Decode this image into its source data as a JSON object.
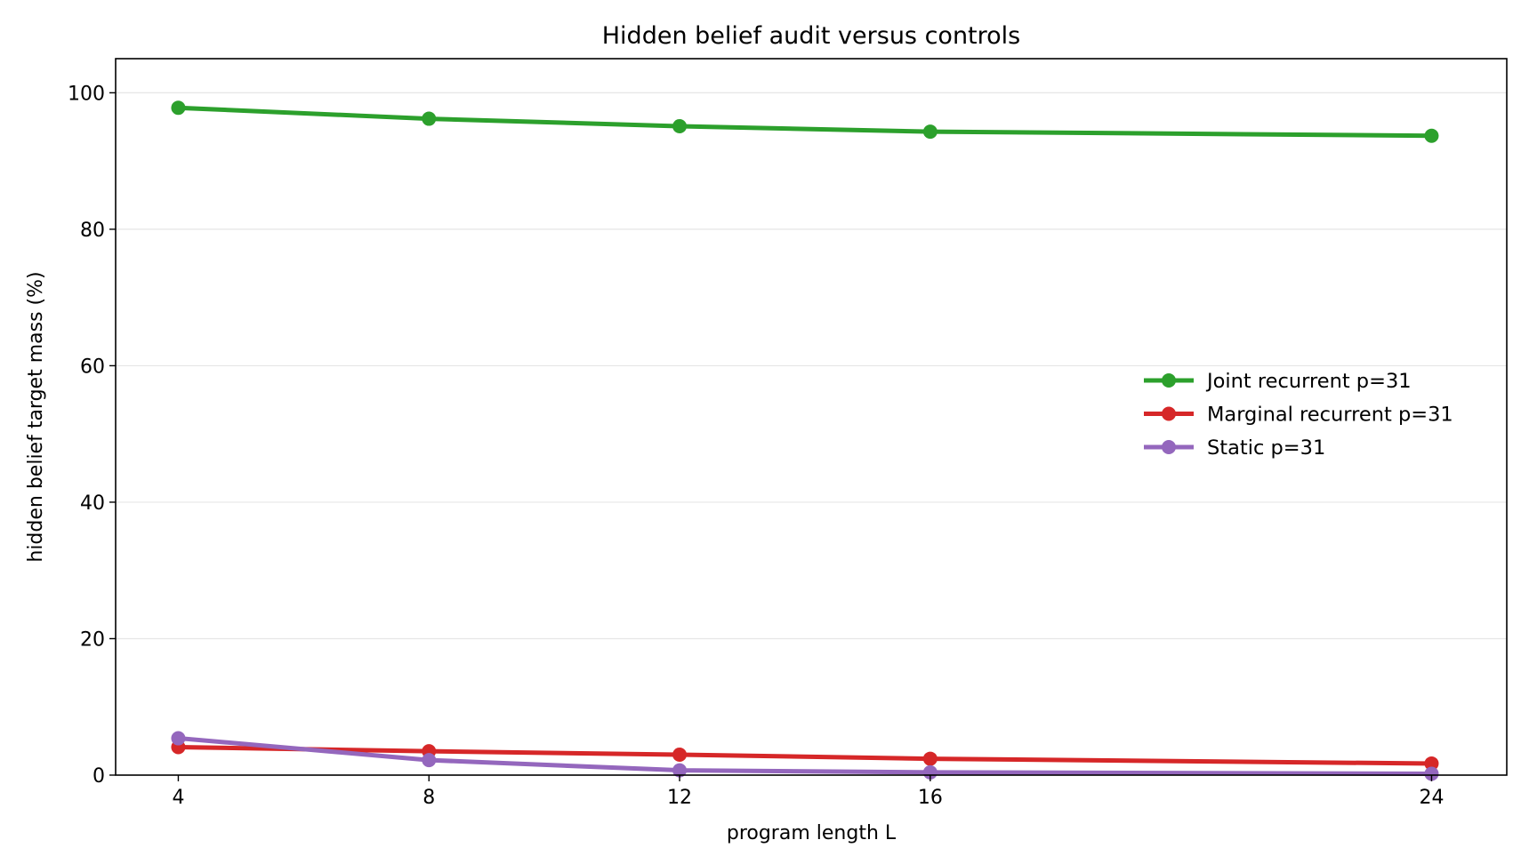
{
  "chart_data": {
    "type": "line",
    "title": "Hidden belief audit versus controls",
    "xlabel": "program length L",
    "ylabel": "hidden belief target mass (%)",
    "x": [
      4,
      8,
      12,
      16,
      24
    ],
    "x_ticks": [
      "4",
      "8",
      "12",
      "16",
      "24"
    ],
    "y_ticks": [
      "0",
      "20",
      "40",
      "60",
      "80",
      "100"
    ],
    "xlim": [
      3,
      25.2
    ],
    "ylim": [
      0,
      105
    ],
    "grid": "horizontal",
    "legend_position": "center-right",
    "series": [
      {
        "name": "Joint recurrent p=31",
        "color": "#2ca02c",
        "values": [
          97.8,
          96.2,
          95.1,
          94.3,
          93.7
        ]
      },
      {
        "name": "Marginal recurrent p=31",
        "color": "#d62728",
        "values": [
          4.1,
          3.5,
          3.0,
          2.4,
          1.7
        ]
      },
      {
        "name": "Static p=31",
        "color": "#9467bd",
        "values": [
          5.4,
          2.2,
          0.7,
          0.4,
          0.2
        ]
      }
    ]
  }
}
